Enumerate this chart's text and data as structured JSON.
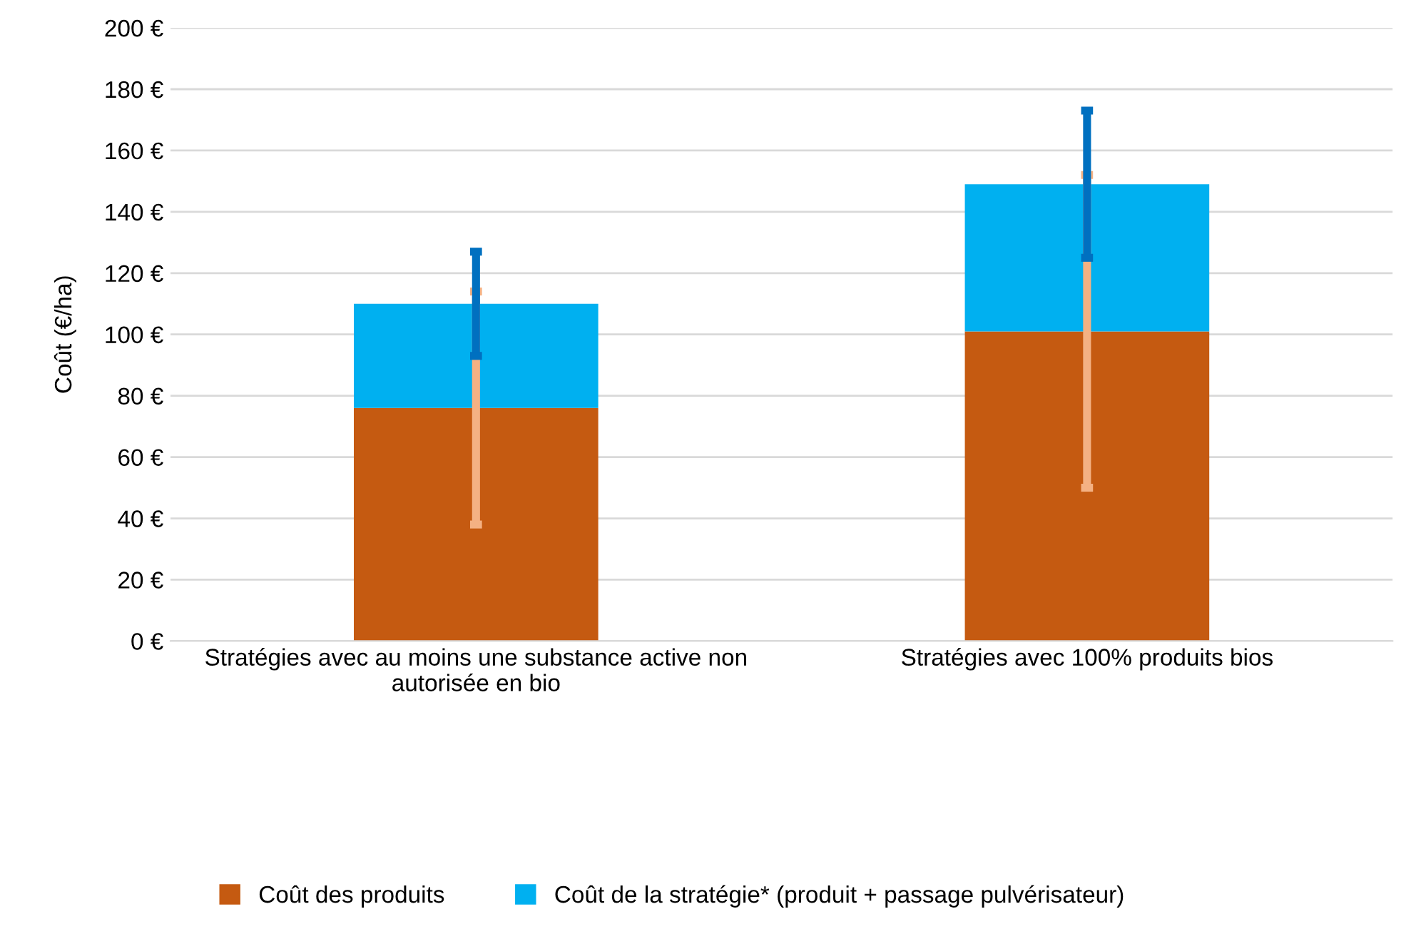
{
  "chart_data": {
    "type": "bar",
    "stacked": true,
    "ylabel": "Coût (€/ha)",
    "categories": [
      "Stratégies avec au moins une substance active non autorisée en bio",
      "Stratégies avec 100% produits bios"
    ],
    "series": [
      {
        "name": "Coût des produits",
        "color": "#c55a11",
        "values": [
          76,
          101
        ],
        "errors": [
          38,
          51
        ]
      },
      {
        "name": "Coût de la stratégie* (produit + passage pulvérisateur)",
        "color": "#00b0f0",
        "values": [
          34,
          48
        ],
        "errors": [
          17,
          24
        ]
      }
    ],
    "ylim": [
      0,
      200
    ],
    "yticks": [
      {
        "value": 0,
        "label": "0 €"
      },
      {
        "value": 20,
        "label": "20 €"
      },
      {
        "value": 40,
        "label": "40 €"
      },
      {
        "value": 60,
        "label": "60 €"
      },
      {
        "value": 80,
        "label": "80 €"
      },
      {
        "value": 100,
        "label": "100 €"
      },
      {
        "value": 120,
        "label": "120 €"
      },
      {
        "value": 140,
        "label": "140 €"
      },
      {
        "value": 160,
        "label": "160 €"
      },
      {
        "value": 180,
        "label": "180 €"
      },
      {
        "value": 200,
        "label": "200 €"
      }
    ],
    "grid": "y",
    "legend": "bottom"
  }
}
